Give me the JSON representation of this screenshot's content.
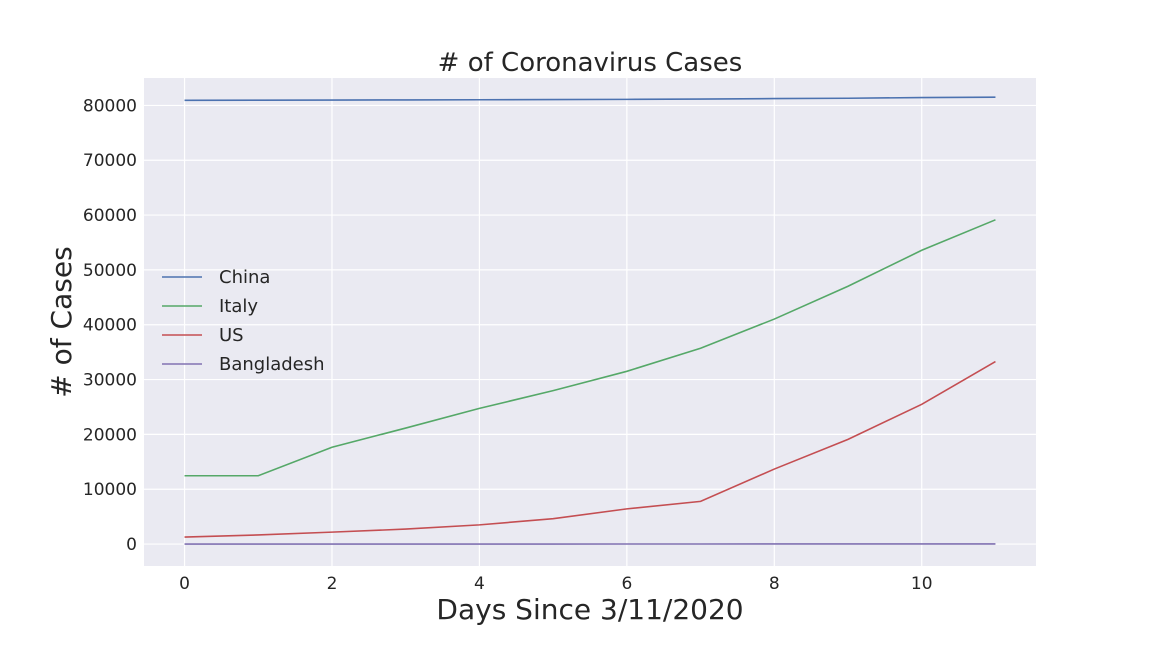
{
  "chart_data": {
    "type": "line",
    "title": "# of Coronavirus Cases",
    "xlabel": "Days Since 3/11/2020",
    "ylabel": "# of Cases",
    "x": [
      0,
      1,
      2,
      3,
      4,
      5,
      6,
      7,
      8,
      9,
      10,
      11
    ],
    "xlim": [
      -0.55,
      11.55
    ],
    "ylim": [
      -4000,
      85000
    ],
    "xticks": [
      0,
      2,
      4,
      6,
      8,
      10
    ],
    "yticks": [
      0,
      10000,
      20000,
      30000,
      40000,
      50000,
      60000,
      70000,
      80000
    ],
    "grid": true,
    "legend_position": "center-left",
    "series": [
      {
        "name": "China",
        "color": "#4c72b0",
        "values": [
          80932,
          80945,
          80977,
          81003,
          81033,
          81058,
          81102,
          81156,
          81250,
          81305,
          81435,
          81498
        ]
      },
      {
        "name": "Italy",
        "color": "#55a868",
        "values": [
          12462,
          12462,
          17660,
          21157,
          24747,
          27980,
          31506,
          35713,
          41035,
          47021,
          53578,
          59138
        ]
      },
      {
        "name": "US",
        "color": "#c44e52",
        "values": [
          1281,
          1663,
          2179,
          2727,
          3499,
          4632,
          6421,
          7786,
          13680,
          19101,
          25493,
          33276
        ]
      },
      {
        "name": "Bangladesh",
        "color": "#8172b2",
        "values": [
          3,
          3,
          3,
          3,
          5,
          8,
          10,
          14,
          17,
          20,
          24,
          27
        ]
      }
    ]
  }
}
